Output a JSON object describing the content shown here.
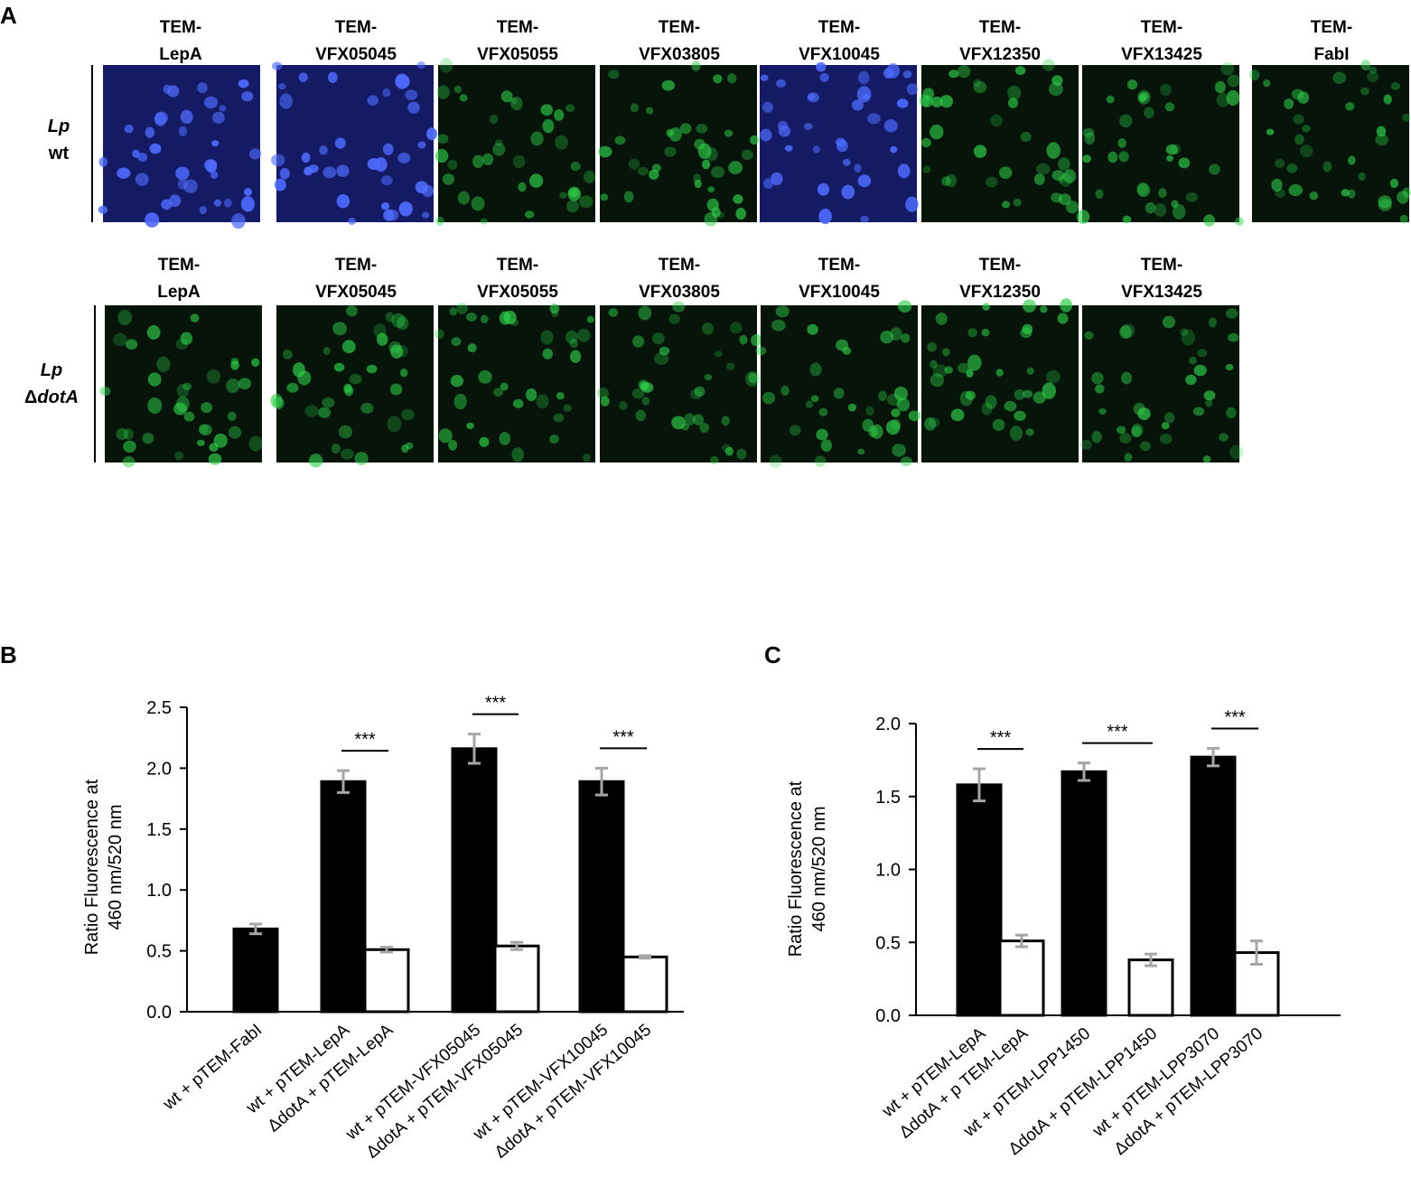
{
  "panel_letters": {
    "a": "A",
    "b": "B",
    "c": "C"
  },
  "panel_a": {
    "rows": [
      {
        "label_line1": "Lp",
        "label_line2": "wt",
        "images": [
          {
            "line1": "TEM-",
            "line2": "LepA",
            "tone": "blue"
          },
          {
            "line1": "TEM-",
            "line2": "VFX05045",
            "tone": "blue"
          },
          {
            "line1": "TEM-",
            "line2": "VFX05055",
            "tone": "green"
          },
          {
            "line1": "TEM-",
            "line2": "VFX03805",
            "tone": "green"
          },
          {
            "line1": "TEM-",
            "line2": "VFX10045",
            "tone": "blue"
          },
          {
            "line1": "TEM-",
            "line2": "VFX12350",
            "tone": "green"
          },
          {
            "line1": "TEM-",
            "line2": "VFX13425",
            "tone": "green"
          },
          {
            "line1": "TEM-",
            "line2": "FabI",
            "tone": "green"
          }
        ]
      },
      {
        "label_line1": "Lp",
        "label_line2": "ΔdotA",
        "images": [
          {
            "line1": "TEM-",
            "line2": "LepA",
            "tone": "green"
          },
          {
            "line1": "TEM-",
            "line2": "VFX05045",
            "tone": "green"
          },
          {
            "line1": "TEM-",
            "line2": "VFX05055",
            "tone": "green"
          },
          {
            "line1": "TEM-",
            "line2": "VFX03805",
            "tone": "green"
          },
          {
            "line1": "TEM-",
            "line2": "VFX10045",
            "tone": "green"
          },
          {
            "line1": "TEM-",
            "line2": "VFX12350",
            "tone": "green"
          },
          {
            "line1": "TEM-",
            "line2": "VFX13425",
            "tone": "green"
          }
        ]
      }
    ],
    "colors": {
      "blue_bg": "#141a63",
      "blue_cell": "#4f6bff",
      "green_bg": "#06140a",
      "green_cell": "#2fcf4a"
    }
  },
  "chart_data": [
    {
      "panel": "B",
      "type": "bar",
      "ylabel_line1": "Ratio Fluorescence at",
      "ylabel_line2": "460 nm/520 nm",
      "ylim": [
        0,
        2.5
      ],
      "yticks": [
        "0.0",
        "0.5",
        "1.0",
        "1.5",
        "2.0",
        "2.5"
      ],
      "bars": [
        {
          "category": "wt + pTEM-FabI",
          "value": 0.68,
          "error": 0.04,
          "fill": "#000000"
        },
        {
          "category": "wt + pTEM-LepA",
          "value": 1.89,
          "error": 0.09,
          "fill": "#000000"
        },
        {
          "category": "ΔdotA + pTEM-LepA",
          "value": 0.51,
          "error": 0.02,
          "fill": "#ffffff"
        },
        {
          "category": "wt + pTEM-VFX05045",
          "value": 2.16,
          "error": 0.12,
          "fill": "#000000"
        },
        {
          "category": "ΔdotA + pTEM-VFX05045",
          "value": 0.54,
          "error": 0.03,
          "fill": "#ffffff"
        },
        {
          "category": "wt + pTEM-VFX10045",
          "value": 1.89,
          "error": 0.11,
          "fill": "#000000"
        },
        {
          "category": "ΔdotA + pTEM-VFX10045",
          "value": 0.45,
          "error": 0.01,
          "fill": "#ffffff"
        }
      ],
      "significance": [
        {
          "between": [
            1,
            2
          ],
          "label": "***"
        },
        {
          "between": [
            3,
            4
          ],
          "label": "***"
        },
        {
          "between": [
            5,
            6
          ],
          "label": "***"
        }
      ]
    },
    {
      "panel": "C",
      "type": "bar",
      "ylabel_line1": "Ratio Fluorescence at",
      "ylabel_line2": "460 nm/520 nm",
      "ylim": [
        0,
        2.0
      ],
      "yticks": [
        "0.0",
        "0.5",
        "1.0",
        "1.5",
        "2.0"
      ],
      "bars": [
        {
          "category": "wt + pTEM-LepA",
          "value": 1.58,
          "error": 0.11,
          "fill": "#000000"
        },
        {
          "category": "ΔdotA + p TEM-LepA",
          "value": 0.51,
          "error": 0.04,
          "fill": "#ffffff"
        },
        {
          "category": "wt + pTEM-LPP1450",
          "value": 1.67,
          "error": 0.06,
          "fill": "#000000"
        },
        {
          "category": "ΔdotA + pTEM-LPP1450",
          "value": 0.38,
          "error": 0.04,
          "fill": "#ffffff"
        },
        {
          "category": "wt + pTEM-LPP3070",
          "value": 1.77,
          "error": 0.06,
          "fill": "#000000"
        },
        {
          "category": "ΔdotA + pTEM-LPP3070",
          "value": 0.43,
          "error": 0.08,
          "fill": "#ffffff"
        }
      ],
      "significance": [
        {
          "between": [
            0,
            1
          ],
          "label": "***"
        },
        {
          "between": [
            2,
            3
          ],
          "label": "***"
        },
        {
          "between": [
            4,
            5
          ],
          "label": "***"
        }
      ]
    }
  ]
}
